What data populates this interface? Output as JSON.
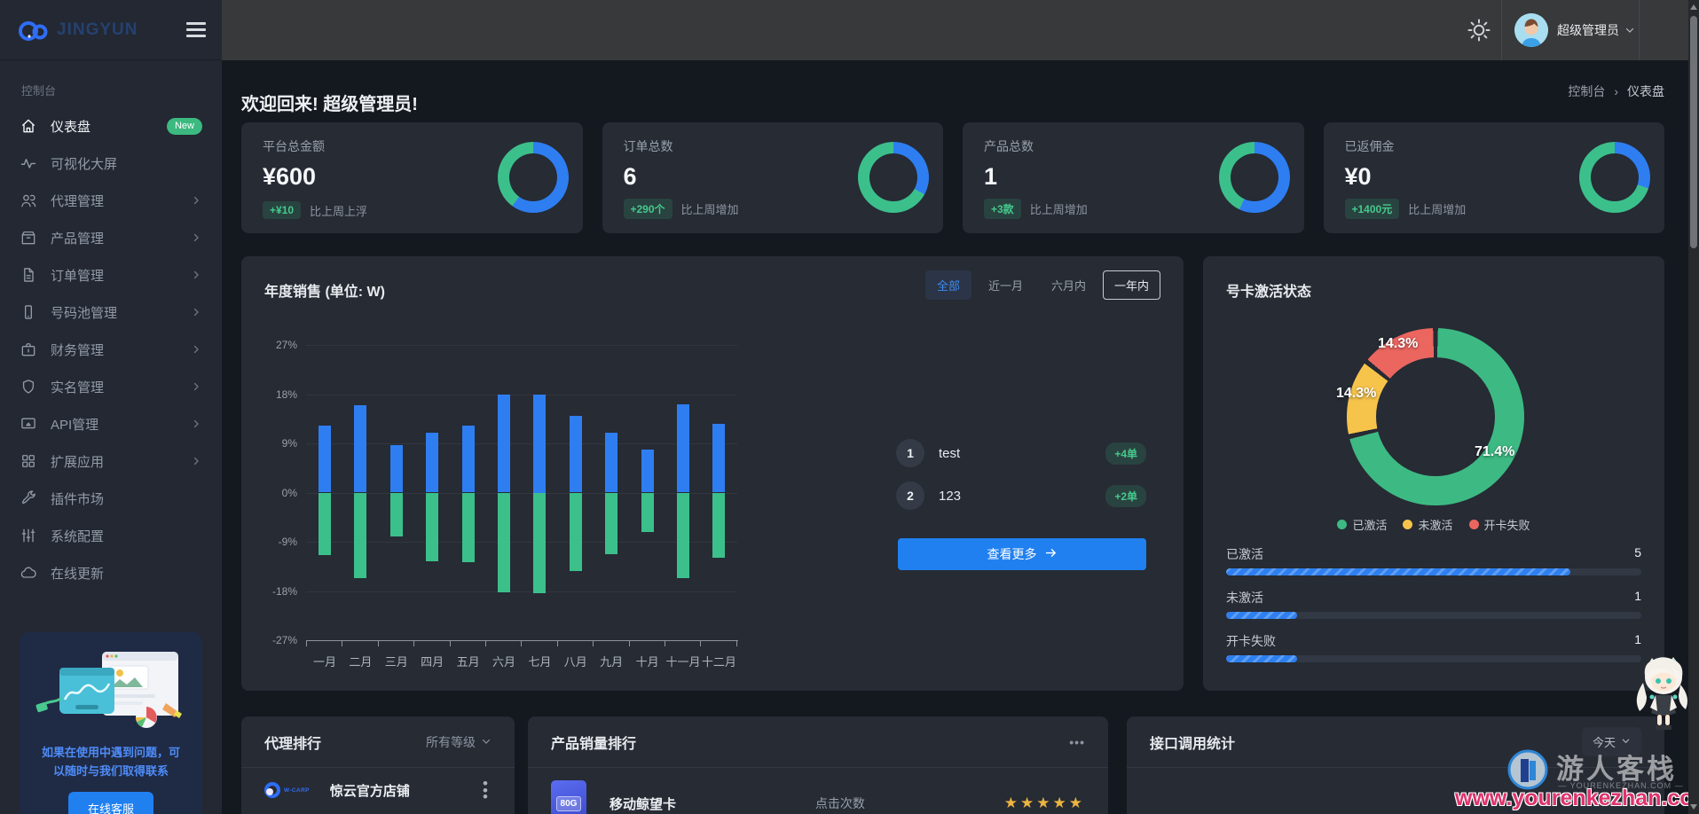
{
  "brand": {
    "logo_text": "JINGYUN"
  },
  "topbar": {
    "user_name": "超级管理员"
  },
  "sidebar": {
    "section_label": "控制台",
    "items": [
      {
        "label": "仪表盘",
        "icon": "home-icon",
        "badge": "New",
        "active": true
      },
      {
        "label": "可视化大屏",
        "icon": "activity-icon"
      },
      {
        "label": "代理管理",
        "icon": "users-icon",
        "chevron": true
      },
      {
        "label": "产品管理",
        "icon": "box-icon",
        "chevron": true
      },
      {
        "label": "订单管理",
        "icon": "document-icon",
        "chevron": true
      },
      {
        "label": "号码池管理",
        "icon": "phone-icon",
        "chevron": true
      },
      {
        "label": "财务管理",
        "icon": "briefcase-icon",
        "chevron": true
      },
      {
        "label": "实名管理",
        "icon": "shield-icon",
        "chevron": true
      },
      {
        "label": "API管理",
        "icon": "screen-share-icon",
        "chevron": true
      },
      {
        "label": "扩展应用",
        "icon": "grid-icon",
        "chevron": true
      },
      {
        "label": "插件市场",
        "icon": "wrench-icon"
      },
      {
        "label": "系统配置",
        "icon": "sliders-icon"
      },
      {
        "label": "在线更新",
        "icon": "cloud-icon"
      }
    ],
    "help": {
      "line1": "如果在使用中遇到问题，可",
      "line2": "以随时与我们取得联系",
      "button": "在线客服"
    }
  },
  "page": {
    "welcome": "欢迎回来! 超级管理员!",
    "breadcrumb": [
      "控制台",
      "仪表盘"
    ]
  },
  "stat_cards": [
    {
      "label": "平台总金额",
      "value": "¥600",
      "badge": "+¥10",
      "note": "比上周上浮",
      "donut_blue_pct": 60
    },
    {
      "label": "订单总数",
      "value": "6",
      "badge": "+290个",
      "note": "比上周增加",
      "donut_blue_pct": 33
    },
    {
      "label": "产品总数",
      "value": "1",
      "badge": "+3款",
      "note": "比上周增加",
      "donut_blue_pct": 57
    },
    {
      "label": "已返佣金",
      "value": "¥0",
      "badge": "+1400元",
      "note": "比上周增加",
      "donut_blue_pct": 30
    }
  ],
  "sales": {
    "title": "年度销售 (单位: W)",
    "filters": [
      {
        "label": "全部",
        "style": "active"
      },
      {
        "label": "近一月",
        "style": ""
      },
      {
        "label": "六月内",
        "style": ""
      },
      {
        "label": "一年内",
        "style": "outlined"
      }
    ],
    "ranking": [
      {
        "rank": "1",
        "name": "test",
        "badge": "+4单"
      },
      {
        "rank": "2",
        "name": "123",
        "badge": "+2单"
      }
    ],
    "more_label": "查看更多"
  },
  "activation": {
    "title": "号卡激活状态",
    "progress_rows": [
      {
        "label": "已激活",
        "value": "5",
        "fill_pct": 83
      },
      {
        "label": "未激活",
        "value": "1",
        "fill_pct": 17
      },
      {
        "label": "开卡失败",
        "value": "1",
        "fill_pct": 17
      }
    ]
  },
  "chart_data": [
    {
      "id": "annual-sales",
      "type": "bar",
      "title": "年度销售 (单位: W)",
      "categories": [
        "一月",
        "二月",
        "三月",
        "四月",
        "五月",
        "六月",
        "七月",
        "八月",
        "九月",
        "十月",
        "十一月",
        "十二月"
      ],
      "series": [
        {
          "name": "series-blue",
          "color": "#2e7ef2",
          "values": [
            12.2,
            15.9,
            8.6,
            11.0,
            12.3,
            17.9,
            18.0,
            14.0,
            10.9,
            7.8,
            16.1,
            12.6
          ]
        },
        {
          "name": "series-green",
          "color": "#3cc08b",
          "values": [
            -11.5,
            -15.7,
            -8.1,
            -12.5,
            -12.7,
            -18.2,
            -18.4,
            -14.3,
            -11.2,
            -7.2,
            -15.6,
            -11.9
          ]
        }
      ],
      "ylim": [
        -27,
        27
      ],
      "yticks": [
        "27%",
        "18%",
        "9%",
        "0%",
        "-9%",
        "-18%",
        "-27%"
      ],
      "grid": true,
      "legend_position": "none"
    },
    {
      "id": "activation-status",
      "type": "pie",
      "title": "号卡激活状态",
      "slices": [
        {
          "label": "已激活",
          "pct": 71.4,
          "pct_label": "71.4%",
          "color": "#3dba83"
        },
        {
          "label": "未激活",
          "pct": 14.3,
          "pct_label": "14.3%",
          "color": "#f7c44b"
        },
        {
          "label": "开卡失败",
          "pct": 14.3,
          "pct_label": "14.3%",
          "color": "#ec6660"
        }
      ],
      "legend_position": "bottom"
    },
    {
      "id": "activation-progress",
      "type": "bar",
      "categories": [
        "已激活",
        "未激活",
        "开卡失败"
      ],
      "values": [
        5,
        1,
        1
      ]
    }
  ],
  "agent_ranking": {
    "title": "代理排行",
    "filter_label": "所有等级",
    "rows": [
      {
        "name": "惊云官方店铺",
        "logo_text": "W-CARP"
      }
    ]
  },
  "product_ranking": {
    "title": "产品销量排行",
    "menu_icon": "ellipsis-icon",
    "rows": [
      {
        "name": "移动鲸望卡",
        "image_label": "80G",
        "metric_label": "点击次数",
        "stars": 5
      }
    ]
  },
  "api_stats": {
    "title": "接口调用统计",
    "filter_label": "今天"
  },
  "watermark": {
    "cn": "游人客栈",
    "domain": "— YOURENKEZHAN.COM —",
    "url": "www.yourenkezhan.com"
  },
  "colors": {
    "accent_blue": "#2080f0",
    "bar_blue": "#2e7ef2",
    "bar_green": "#3cc08b",
    "pie_green": "#3dba83",
    "pie_yellow": "#f7c44b",
    "pie_red": "#ec6660",
    "star_gold": "#edb440",
    "badge_green": "#3cb980",
    "watermark_pink": "#e0336d",
    "card_bg": "#262b34"
  }
}
